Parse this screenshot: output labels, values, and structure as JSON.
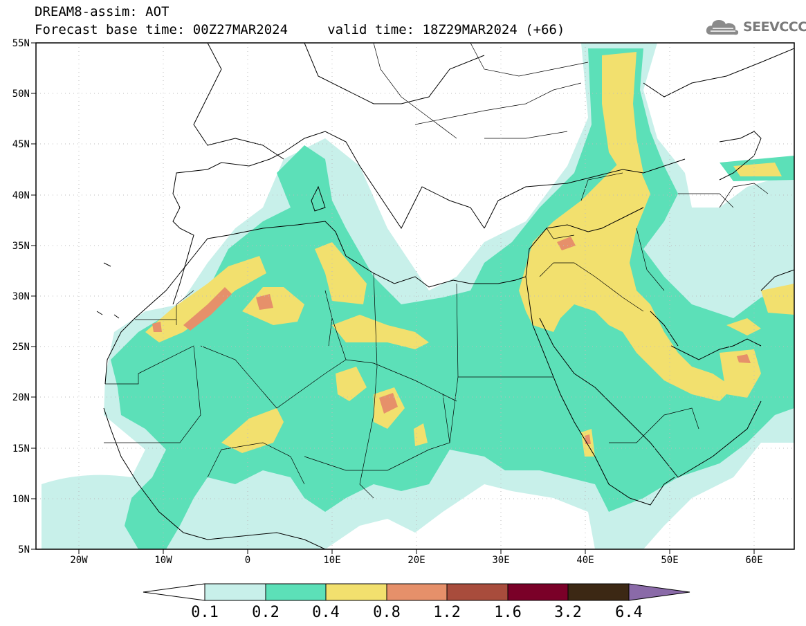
{
  "header": {
    "title_line1": "DREAM8-assim: AOT",
    "title_line2": "Forecast base time: 00Z27MAR2024     valid time: 18Z29MAR2024 (+66)",
    "logo_text": "SEEVCCC",
    "logo_icon": "cloud-icon"
  },
  "map": {
    "lon_ticks": [
      "20W",
      "10W",
      "0",
      "10E",
      "20E",
      "30E",
      "40E",
      "50E",
      "60E"
    ],
    "lat_ticks": [
      "55N",
      "50N",
      "45N",
      "40N",
      "35N",
      "30N",
      "25N",
      "20N",
      "15N",
      "10N",
      "5N"
    ],
    "lon_range": [
      -25,
      65
    ],
    "lat_range": [
      5,
      55
    ],
    "grid": "dotted"
  },
  "colorbar": {
    "labels": [
      "0.1",
      "0.2",
      "0.4",
      "0.8",
      "1.2",
      "1.6",
      "3.2",
      "6.4"
    ],
    "colors": [
      "#ffffff",
      "#c8f0ea",
      "#5ce0b8",
      "#f2e06e",
      "#e6906a",
      "#a84c3c",
      "#7a0028",
      "#3c2814",
      "#8a6aa8"
    ]
  }
}
